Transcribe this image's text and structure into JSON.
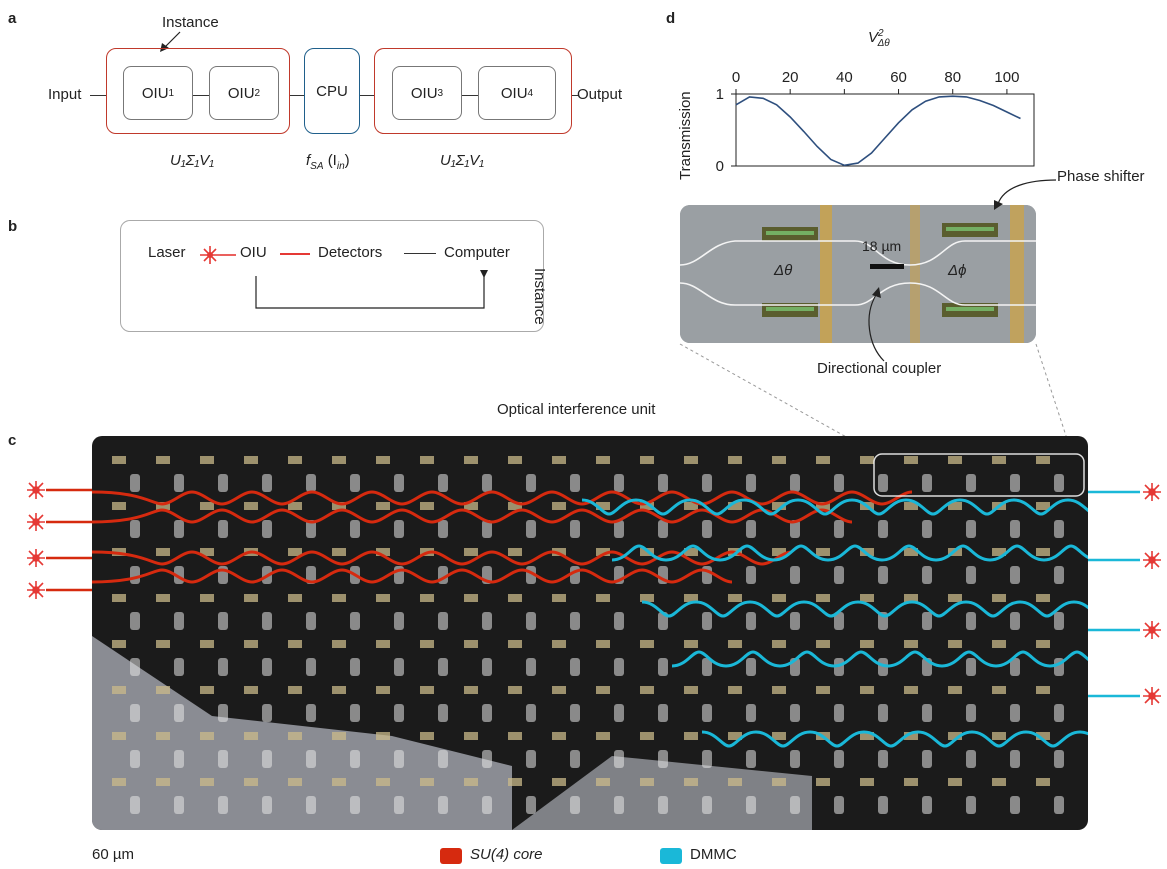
{
  "panels": {
    "a": "a",
    "b": "b",
    "c": "c",
    "d": "d"
  },
  "panel_a": {
    "instance_label": "Instance",
    "input_label": "Input",
    "output_label": "Output",
    "oiu1": "OIU",
    "oiu1_sup": "1",
    "oiu2": "OIU",
    "oiu2_sup": "2",
    "cpu": "CPU",
    "oiu3": "OIU",
    "oiu3_sup": "3",
    "oiu4": "OIU",
    "oiu4_sup": "4",
    "left_caption": "U₁Σ₁V₁",
    "mid_caption": "f",
    "mid_caption_sub": "SA",
    "mid_caption_arg": "(I",
    "mid_caption_arg_sub": "in",
    "mid_caption_close": ")",
    "right_caption": "U₁Σ₁V₁"
  },
  "panel_b": {
    "laser": "Laser",
    "oiu": "OIU",
    "detectors": "Detectors",
    "computer": "Computer",
    "instance": "Instance"
  },
  "panel_d": {
    "title": "V",
    "title_sup": "2",
    "title_sub": "Δθ",
    "ylabel": "Transmission",
    "phase_shifter": "Phase shifter",
    "directional_coupler": "Directional coupler",
    "scale": "18 µm",
    "dtheta": "Δθ",
    "dphi": "Δϕ"
  },
  "panel_c": {
    "title": "Optical interference unit",
    "scale": "60 µm",
    "legend": [
      {
        "label": "SU(4) core",
        "color": "#d62a0f"
      },
      {
        "label": "DMMC",
        "color": "#1ab8d8"
      }
    ]
  },
  "chart_data": {
    "type": "line",
    "xlabel": "V²Δθ",
    "ylabel": "Transmission",
    "xlim": [
      0,
      110
    ],
    "ylim": [
      0,
      1
    ],
    "x_ticks": [
      0,
      20,
      40,
      60,
      80,
      100
    ],
    "y_ticks": [
      0,
      1
    ],
    "reference_line": 1,
    "x": [
      0,
      5,
      10,
      15,
      20,
      25,
      30,
      35,
      40,
      45,
      50,
      55,
      60,
      65,
      70,
      75,
      80,
      85,
      90,
      95,
      100,
      105
    ],
    "values": [
      0.85,
      0.96,
      0.94,
      0.85,
      0.68,
      0.48,
      0.27,
      0.09,
      0.01,
      0.04,
      0.18,
      0.39,
      0.6,
      0.78,
      0.9,
      0.96,
      0.97,
      0.96,
      0.91,
      0.84,
      0.75,
      0.66
    ]
  }
}
